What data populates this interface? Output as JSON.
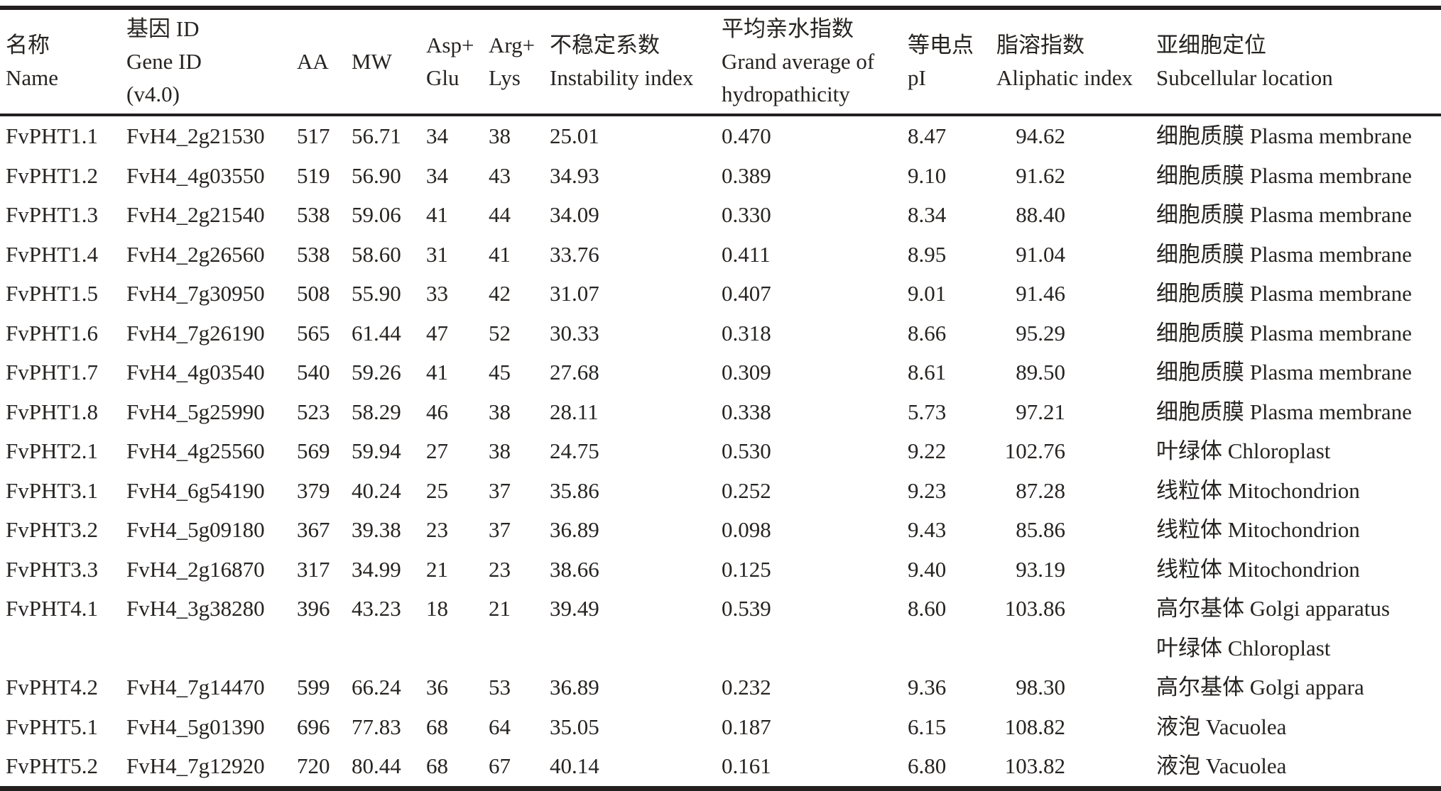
{
  "table": {
    "header": {
      "columns": [
        {
          "lines": [
            "名称",
            "Name"
          ]
        },
        {
          "lines": [
            "基因 ID",
            "Gene ID",
            "(v4.0)"
          ]
        },
        {
          "lines": [
            "AA"
          ]
        },
        {
          "lines": [
            "MW"
          ]
        },
        {
          "lines": [
            "Asp+",
            "Glu"
          ]
        },
        {
          "lines": [
            "Arg+",
            "Lys"
          ]
        },
        {
          "lines": [
            "不稳定系数",
            "Instability index"
          ]
        },
        {
          "lines": [
            "平均亲水指数",
            "Grand average of",
            "hydropathicity"
          ]
        },
        {
          "lines": [
            "等电点",
            "pI"
          ]
        },
        {
          "lines": [
            "脂溶指数",
            "Aliphatic index"
          ]
        },
        {
          "lines": [
            "亚细胞定位",
            "Subcellular location"
          ]
        }
      ]
    },
    "rows": [
      {
        "name": "FvPHT1.1",
        "gene_id": "FvH4_2g21530",
        "aa": "517",
        "mw": "56.71",
        "asp_glu": "34",
        "arg_lys": "38",
        "instability_index": "25.01",
        "gravy": "0.470",
        "pi": "8.47",
        "aliphatic_index": "94.62",
        "location": [
          "细胞质膜 Plasma membrane"
        ]
      },
      {
        "name": "FvPHT1.2",
        "gene_id": "FvH4_4g03550",
        "aa": "519",
        "mw": "56.90",
        "asp_glu": "34",
        "arg_lys": "43",
        "instability_index": "34.93",
        "gravy": "0.389",
        "pi": "9.10",
        "aliphatic_index": "91.62",
        "location": [
          "细胞质膜 Plasma membrane"
        ]
      },
      {
        "name": "FvPHT1.3",
        "gene_id": "FvH4_2g21540",
        "aa": "538",
        "mw": "59.06",
        "asp_glu": "41",
        "arg_lys": "44",
        "instability_index": "34.09",
        "gravy": "0.330",
        "pi": "8.34",
        "aliphatic_index": "88.40",
        "location": [
          "细胞质膜 Plasma membrane"
        ]
      },
      {
        "name": "FvPHT1.4",
        "gene_id": "FvH4_2g26560",
        "aa": "538",
        "mw": "58.60",
        "asp_glu": "31",
        "arg_lys": "41",
        "instability_index": "33.76",
        "gravy": "0.411",
        "pi": "8.95",
        "aliphatic_index": "91.04",
        "location": [
          "细胞质膜 Plasma membrane"
        ]
      },
      {
        "name": "FvPHT1.5",
        "gene_id": "FvH4_7g30950",
        "aa": "508",
        "mw": "55.90",
        "asp_glu": "33",
        "arg_lys": "42",
        "instability_index": "31.07",
        "gravy": "0.407",
        "pi": "9.01",
        "aliphatic_index": "91.46",
        "location": [
          "细胞质膜 Plasma membrane"
        ]
      },
      {
        "name": "FvPHT1.6",
        "gene_id": "FvH4_7g26190",
        "aa": "565",
        "mw": "61.44",
        "asp_glu": "47",
        "arg_lys": "52",
        "instability_index": "30.33",
        "gravy": "0.318",
        "pi": "8.66",
        "aliphatic_index": "95.29",
        "location": [
          "细胞质膜 Plasma membrane"
        ]
      },
      {
        "name": "FvPHT1.7",
        "gene_id": "FvH4_4g03540",
        "aa": "540",
        "mw": "59.26",
        "asp_glu": "41",
        "arg_lys": "45",
        "instability_index": "27.68",
        "gravy": "0.309",
        "pi": "8.61",
        "aliphatic_index": "89.50",
        "location": [
          "细胞质膜 Plasma membrane"
        ]
      },
      {
        "name": "FvPHT1.8",
        "gene_id": "FvH4_5g25990",
        "aa": "523",
        "mw": "58.29",
        "asp_glu": "46",
        "arg_lys": "38",
        "instability_index": "28.11",
        "gravy": "0.338",
        "pi": "5.73",
        "aliphatic_index": "97.21",
        "location": [
          "细胞质膜 Plasma membrane"
        ]
      },
      {
        "name": "FvPHT2.1",
        "gene_id": "FvH4_4g25560",
        "aa": "569",
        "mw": "59.94",
        "asp_glu": "27",
        "arg_lys": "38",
        "instability_index": "24.75",
        "gravy": "0.530",
        "pi": "9.22",
        "aliphatic_index": "102.76",
        "location": [
          "叶绿体 Chloroplast"
        ]
      },
      {
        "name": "FvPHT3.1",
        "gene_id": "FvH4_6g54190",
        "aa": "379",
        "mw": "40.24",
        "asp_glu": "25",
        "arg_lys": "37",
        "instability_index": "35.86",
        "gravy": "0.252",
        "pi": "9.23",
        "aliphatic_index": "87.28",
        "location": [
          "线粒体 Mitochondrion"
        ]
      },
      {
        "name": "FvPHT3.2",
        "gene_id": "FvH4_5g09180",
        "aa": "367",
        "mw": "39.38",
        "asp_glu": "23",
        "arg_lys": "37",
        "instability_index": "36.89",
        "gravy": "0.098",
        "pi": "9.43",
        "aliphatic_index": "85.86",
        "location": [
          "线粒体 Mitochondrion"
        ]
      },
      {
        "name": "FvPHT3.3",
        "gene_id": "FvH4_2g16870",
        "aa": "317",
        "mw": "34.99",
        "asp_glu": "21",
        "arg_lys": "23",
        "instability_index": "38.66",
        "gravy": "0.125",
        "pi": "9.40",
        "aliphatic_index": "93.19",
        "location": [
          "线粒体 Mitochondrion"
        ]
      },
      {
        "name": "FvPHT4.1",
        "gene_id": "FvH4_3g38280",
        "aa": "396",
        "mw": "43.23",
        "asp_glu": "18",
        "arg_lys": "21",
        "instability_index": "39.49",
        "gravy": "0.539",
        "pi": "8.60",
        "aliphatic_index": "103.86",
        "location": [
          "高尔基体 Golgi apparatus",
          "叶绿体 Chloroplast"
        ]
      },
      {
        "name": "FvPHT4.2",
        "gene_id": "FvH4_7g14470",
        "aa": "599",
        "mw": "66.24",
        "asp_glu": "36",
        "arg_lys": "53",
        "instability_index": "36.89",
        "gravy": "0.232",
        "pi": "9.36",
        "aliphatic_index": "98.30",
        "location": [
          "高尔基体 Golgi appara"
        ]
      },
      {
        "name": "FvPHT5.1",
        "gene_id": "FvH4_5g01390",
        "aa": "696",
        "mw": "77.83",
        "asp_glu": "68",
        "arg_lys": "64",
        "instability_index": "35.05",
        "gravy": "0.187",
        "pi": "6.15",
        "aliphatic_index": "108.82",
        "location": [
          "液泡 Vacuolea"
        ]
      },
      {
        "name": "FvPHT5.2",
        "gene_id": "FvH4_7g12920",
        "aa": "720",
        "mw": "80.44",
        "asp_glu": "68",
        "arg_lys": "67",
        "instability_index": "40.14",
        "gravy": "0.161",
        "pi": "6.80",
        "aliphatic_index": "103.82",
        "location": [
          "液泡 Vacuolea"
        ]
      }
    ]
  }
}
